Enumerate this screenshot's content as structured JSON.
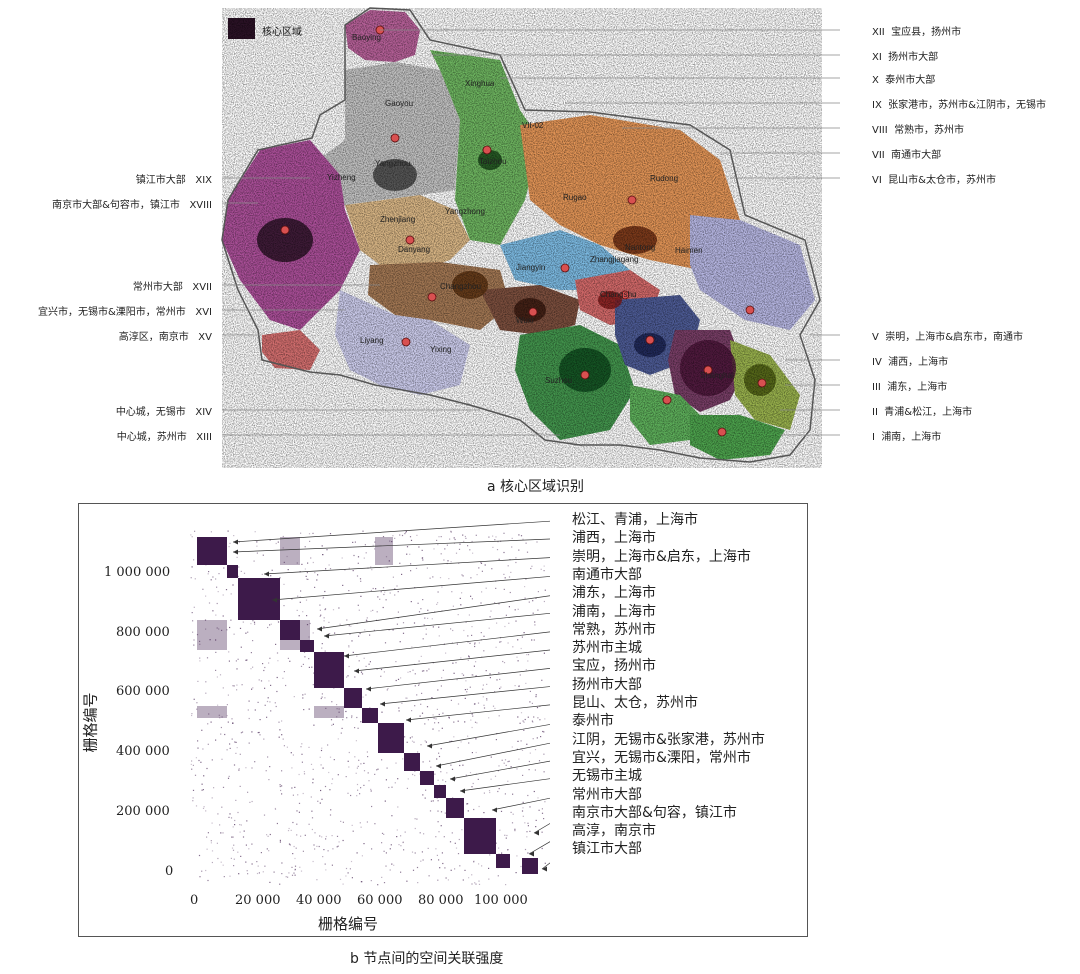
{
  "panel_a": {
    "legend_label": "核心区域",
    "caption": "a 核心区域识别",
    "right_labels": [
      {
        "numeral": "XII",
        "text": "宝应县，扬州市"
      },
      {
        "numeral": "XI",
        "text": "扬州市大部"
      },
      {
        "numeral": "X",
        "text": "泰州市大部"
      },
      {
        "numeral": "IX",
        "text": "张家港市，苏州市&江阴市，无锡市"
      },
      {
        "numeral": "VIII",
        "text": "常熟市，苏州市"
      },
      {
        "numeral": "VII",
        "text": "南通市大部"
      },
      {
        "numeral": "VI",
        "text": "昆山市&太仓市，苏州市"
      },
      {
        "numeral": "V",
        "text": "崇明，上海市&启东市，南通市"
      },
      {
        "numeral": "IV",
        "text": "浦西，上海市"
      },
      {
        "numeral": "III",
        "text": "浦东，上海市"
      },
      {
        "numeral": "II",
        "text": "青浦&松江，上海市"
      },
      {
        "numeral": "I",
        "text": "浦南，上海市"
      }
    ],
    "left_labels": [
      {
        "numeral": "XIX",
        "text": "镇江市大部"
      },
      {
        "numeral": "XVIII",
        "text": "南京市大部&句容市，镇江市"
      },
      {
        "numeral": "XVII",
        "text": "常州市大部"
      },
      {
        "numeral": "XVI",
        "text": "宜兴市，无锡市&溧阳市，常州市"
      },
      {
        "numeral": "XV",
        "text": "高淳区，南京市"
      },
      {
        "numeral": "XIV",
        "text": "中心城，无锡市"
      },
      {
        "numeral": "XIII",
        "text": "中心城，苏州市"
      }
    ],
    "map_labels": [
      "Baoying",
      "Xinghua",
      "Gaoyou",
      "Yangzhou",
      "Yizheng",
      "Taizhou",
      "Nantong",
      "Rudong",
      "Haimen",
      "Jiangyin",
      "Zhangjiagang",
      "Changshu",
      "Danyang",
      "Changzhou",
      "Wuxi",
      "Liyang",
      "Yixing",
      "Suzhou",
      "Shanghai",
      "Zhenjiang",
      "Rugao",
      "VII-02"
    ],
    "colors": {
      "core": "#2b1226",
      "magenta": "#8e2a7c",
      "gray": "#8a8a8a",
      "green": "#3f9a3a",
      "orange": "#d9732a",
      "tan": "#c9a070",
      "brown": "#7a4a2a",
      "blue": "#5aa0d0",
      "red": "#c84040",
      "navy": "#2c3a6e",
      "purple": "#5a2a4a",
      "olive": "#8a9a2a",
      "lavender": "#9a9ad0"
    }
  },
  "panel_b": {
    "caption": "b 节点间的空间关联强度",
    "x_title": "栅格编号",
    "y_title": "栅格编号",
    "x_ticks": [
      "0",
      "20 000",
      "40 000",
      "60 000",
      "80 000",
      "100 000"
    ],
    "y_ticks": [
      "0",
      "200 000",
      "400 000",
      "600 000",
      "800 000",
      "1 000 000"
    ],
    "labels": [
      "松江、青浦，上海市",
      "浦西，上海市",
      "崇明，上海市&启东，上海市",
      "南通市大部",
      "浦东，上海市",
      "浦南，上海市",
      "常熟，苏州市",
      "苏州市主城",
      "宝应，扬州市",
      "扬州市大部",
      "昆山、太仓，苏州市",
      "泰州市",
      "江阴，无锡市&张家港，苏州市",
      "宜兴，无锡市&溧阳，常州市",
      "无锡市主城",
      "常州市大部",
      "南京市大部&句容，镇江市",
      "高淳，南京市",
      "镇江市大部"
    ],
    "color": "#3d1a4a"
  }
}
